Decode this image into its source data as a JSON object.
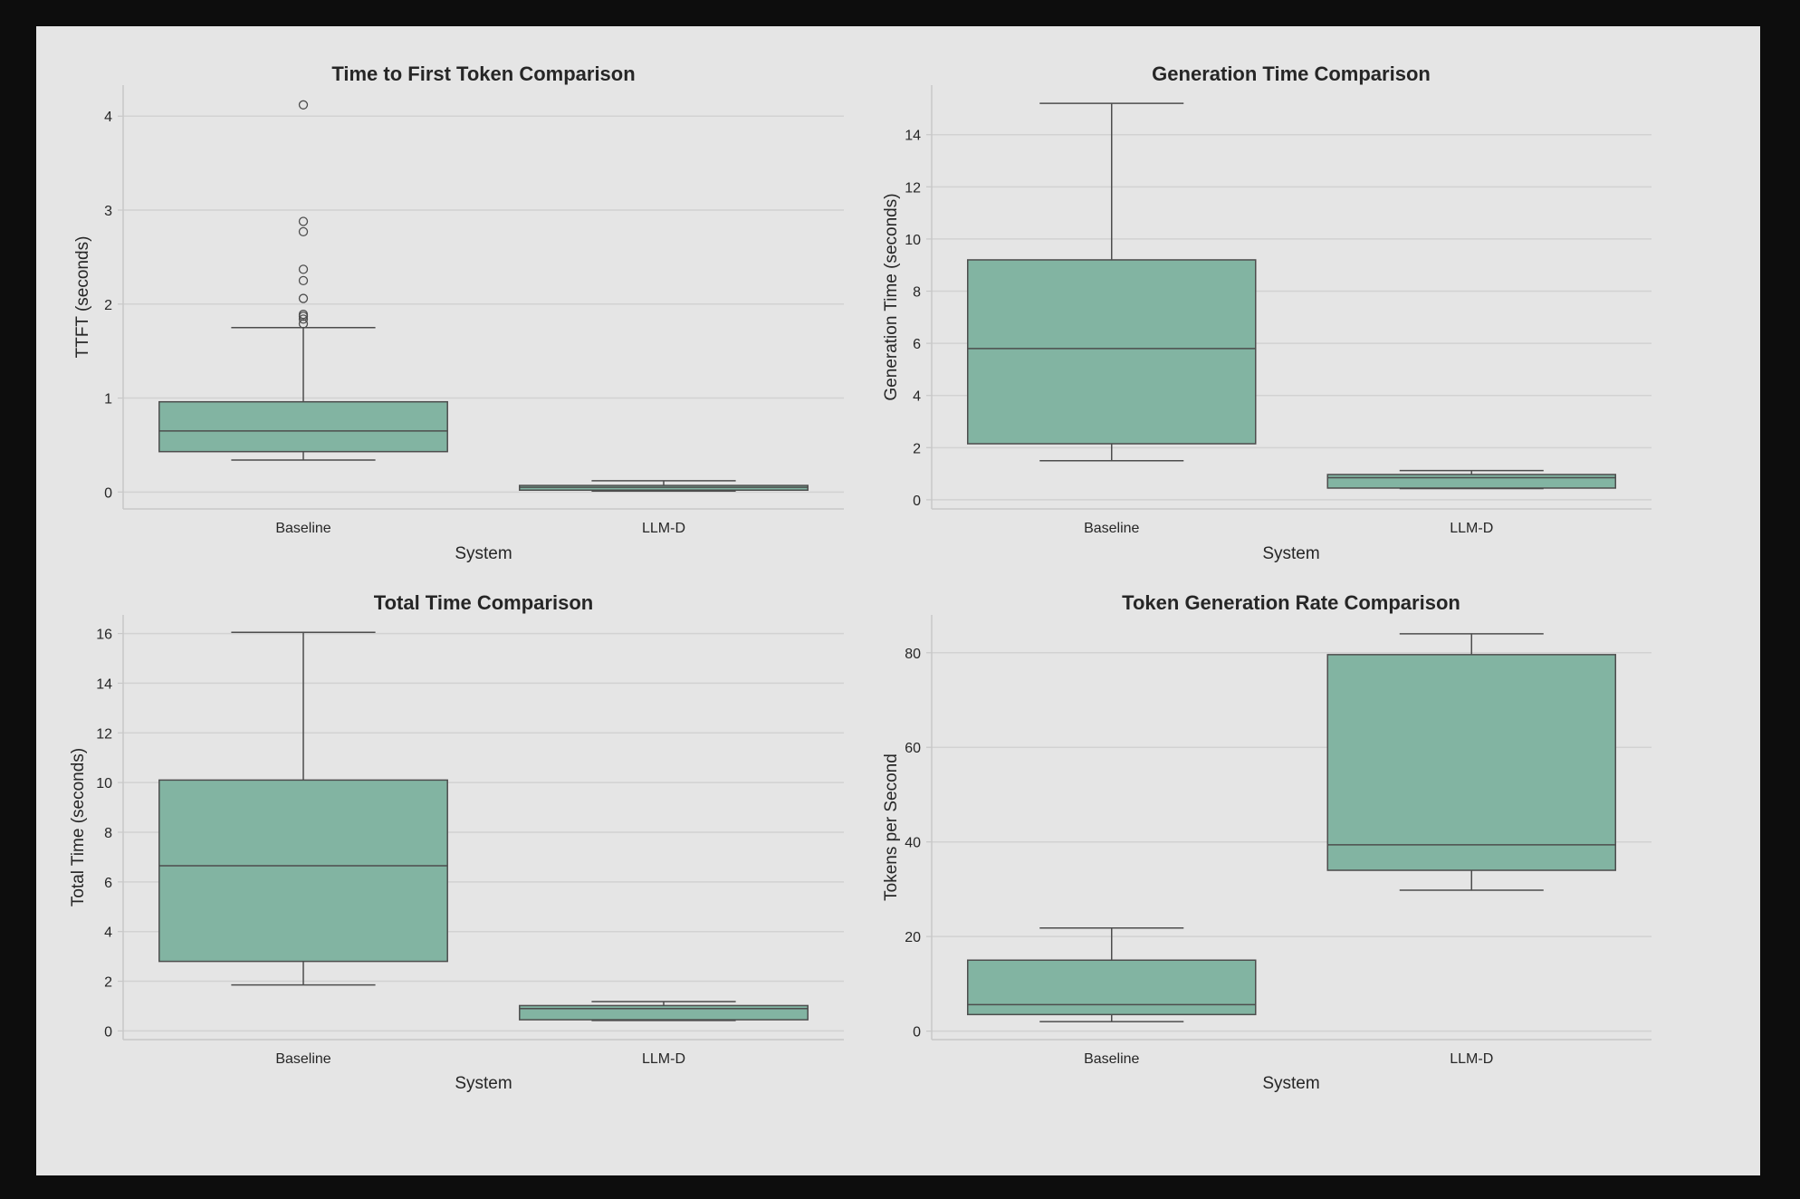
{
  "colors": {
    "background": "#0d0d0d",
    "figure": "#e5e5e5",
    "grid": "#d2d2d2",
    "box_fill": "#82b4a2",
    "box_edge": "#4d4d4d",
    "text": "#262626"
  },
  "chart_data": [
    {
      "type": "box",
      "title": "Time to First Token Comparison",
      "xlabel": "System",
      "ylabel": "TTFT (seconds)",
      "categories": [
        "Baseline",
        "LLM-D"
      ],
      "ylim": [
        -0.18,
        4.33
      ],
      "yticks": [
        0,
        1,
        2,
        3,
        4
      ],
      "grid": true,
      "boxes": [
        {
          "category": "Baseline",
          "whisker_low": 0.34,
          "q1": 0.43,
          "median": 0.65,
          "q3": 0.96,
          "whisker_high": 1.75,
          "outliers": [
            1.79,
            1.84,
            1.87,
            1.89,
            2.06,
            2.25,
            2.37,
            2.77,
            2.88,
            4.12
          ]
        },
        {
          "category": "LLM-D",
          "whisker_low": 0.01,
          "q1": 0.02,
          "median": 0.05,
          "q3": 0.07,
          "whisker_high": 0.12,
          "outliers": []
        }
      ]
    },
    {
      "type": "box",
      "title": "Generation Time Comparison",
      "xlabel": "System",
      "ylabel": "Generation Time (seconds)",
      "categories": [
        "Baseline",
        "LLM-D"
      ],
      "ylim": [
        -0.35,
        15.9
      ],
      "yticks": [
        0,
        2,
        4,
        6,
        8,
        10,
        12,
        14
      ],
      "grid": true,
      "boxes": [
        {
          "category": "Baseline",
          "whisker_low": 1.5,
          "q1": 2.15,
          "median": 5.8,
          "q3": 9.2,
          "whisker_high": 15.2,
          "outliers": []
        },
        {
          "category": "LLM-D",
          "whisker_low": 0.43,
          "q1": 0.45,
          "median": 0.85,
          "q3": 0.97,
          "whisker_high": 1.12,
          "outliers": []
        }
      ]
    },
    {
      "type": "box",
      "title": "Total Time Comparison",
      "xlabel": "System",
      "ylabel": "Total Time (seconds)",
      "categories": [
        "Baseline",
        "LLM-D"
      ],
      "ylim": [
        -0.35,
        16.75
      ],
      "yticks": [
        0,
        2,
        4,
        6,
        8,
        10,
        12,
        14,
        16
      ],
      "grid": true,
      "boxes": [
        {
          "category": "Baseline",
          "whisker_low": 1.85,
          "q1": 2.8,
          "median": 6.65,
          "q3": 10.1,
          "whisker_high": 16.05,
          "outliers": []
        },
        {
          "category": "LLM-D",
          "whisker_low": 0.42,
          "q1": 0.45,
          "median": 0.9,
          "q3": 1.02,
          "whisker_high": 1.18,
          "outliers": []
        }
      ]
    },
    {
      "type": "box",
      "title": "Token Generation Rate Comparison",
      "xlabel": "System",
      "ylabel": "Tokens per Second",
      "categories": [
        "Baseline",
        "LLM-D"
      ],
      "ylim": [
        -1.8,
        88
      ],
      "yticks": [
        0,
        20,
        40,
        60,
        80
      ],
      "grid": true,
      "boxes": [
        {
          "category": "Baseline",
          "whisker_low": 2.0,
          "q1": 3.5,
          "median": 5.6,
          "q3": 15.0,
          "whisker_high": 21.8,
          "outliers": []
        },
        {
          "category": "LLM-D",
          "whisker_low": 29.8,
          "q1": 34.0,
          "median": 39.4,
          "q3": 79.6,
          "whisker_high": 84.0,
          "outliers": []
        }
      ]
    }
  ]
}
